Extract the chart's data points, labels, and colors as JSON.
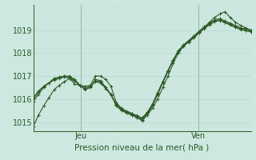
{
  "title": "",
  "xlabel": "Pression niveau de la mer( hPa )",
  "bg_color": "#cce8e0",
  "line_color": "#2d5a27",
  "grid_major_color": "#b8d4cc",
  "grid_minor_color": "#cce0d8",
  "vline_color": "#4a5a4a",
  "ylim": [
    1014.6,
    1020.1
  ],
  "xlim": [
    0,
    50
  ],
  "jeu_x": 11,
  "ven_x": 38,
  "series": [
    [
      1014.8,
      1015.3,
      1015.7,
      1016.05,
      1016.4,
      1016.6,
      1016.75,
      1016.9,
      1016.65,
      1016.6,
      1016.55,
      1016.6,
      1017.0,
      1017.0,
      1016.85,
      1016.55,
      1015.85,
      1015.6,
      1015.4,
      1015.3,
      1015.2,
      1015.05,
      1015.3,
      1015.6,
      1016.0,
      1016.5,
      1017.0,
      1017.55,
      1018.0,
      1018.3,
      1018.5,
      1018.7,
      1018.9,
      1019.1,
      1019.35,
      1019.55,
      1019.7,
      1019.8,
      1019.55,
      1019.35,
      1019.2,
      1019.1,
      1019.0
    ],
    [
      1015.9,
      1016.2,
      1016.5,
      1016.7,
      1016.9,
      1016.95,
      1017.0,
      1017.0,
      1016.85,
      1016.6,
      1016.4,
      1016.5,
      1016.85,
      1016.8,
      1016.5,
      1016.2,
      1015.7,
      1015.5,
      1015.4,
      1015.3,
      1015.2,
      1015.1,
      1015.35,
      1015.7,
      1016.2,
      1016.7,
      1017.2,
      1017.7,
      1018.1,
      1018.35,
      1018.55,
      1018.75,
      1018.95,
      1019.15,
      1019.3,
      1019.45,
      1019.5,
      1019.4,
      1019.3,
      1019.2,
      1019.1,
      1019.05,
      1019.0
    ],
    [
      1016.0,
      1016.3,
      1016.55,
      1016.7,
      1016.85,
      1016.95,
      1017.0,
      1016.95,
      1016.82,
      1016.6,
      1016.45,
      1016.55,
      1016.8,
      1016.75,
      1016.5,
      1016.2,
      1015.75,
      1015.55,
      1015.45,
      1015.35,
      1015.25,
      1015.15,
      1015.4,
      1015.75,
      1016.25,
      1016.75,
      1017.25,
      1017.7,
      1018.1,
      1018.35,
      1018.5,
      1018.7,
      1018.9,
      1019.1,
      1019.25,
      1019.4,
      1019.45,
      1019.35,
      1019.25,
      1019.15,
      1019.05,
      1019.0,
      1018.95
    ],
    [
      1016.05,
      1016.35,
      1016.55,
      1016.7,
      1016.82,
      1016.9,
      1016.95,
      1016.9,
      1016.78,
      1016.58,
      1016.45,
      1016.55,
      1016.75,
      1016.7,
      1016.45,
      1016.18,
      1015.78,
      1015.58,
      1015.48,
      1015.38,
      1015.28,
      1015.18,
      1015.42,
      1015.78,
      1016.28,
      1016.75,
      1017.22,
      1017.67,
      1018.07,
      1018.32,
      1018.47,
      1018.67,
      1018.87,
      1019.07,
      1019.22,
      1019.37,
      1019.42,
      1019.32,
      1019.22,
      1019.12,
      1019.02,
      1018.97,
      1018.92
    ]
  ],
  "marker": "+",
  "markersize": 3,
  "linewidth": 0.8
}
